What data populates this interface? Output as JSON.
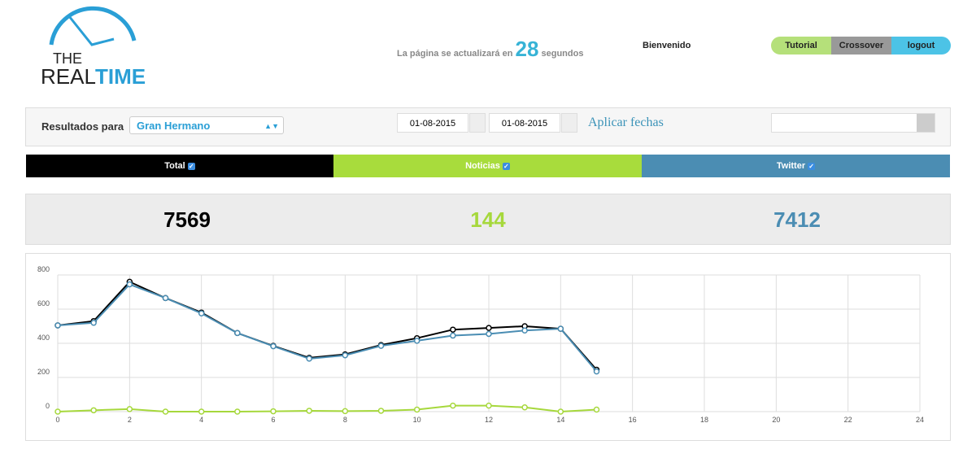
{
  "header": {
    "logo": {
      "line1": "THE",
      "line2a": "REAL",
      "line2b": "TIME"
    },
    "refresh": {
      "before": "La página se actualizará en",
      "seconds": "28",
      "after": "segundos"
    },
    "welcome": "Bienvenido",
    "buttons": [
      "Tutorial",
      "Crossover",
      "logout"
    ]
  },
  "filters": {
    "label": "Resultados para",
    "topic": "Gran Hermano",
    "date_from": "01-08-2015",
    "date_to": "01-08-2015",
    "apply": "Aplicar fechas"
  },
  "tabs": [
    "Total",
    "Noticias",
    "Twitter"
  ],
  "totals": [
    7569,
    144,
    7412
  ],
  "chart": {
    "type": "line",
    "x": [
      0,
      1,
      2,
      3,
      4,
      5,
      6,
      7,
      8,
      9,
      10,
      11,
      12,
      13,
      14,
      15
    ],
    "series": [
      {
        "name": "Total",
        "color": "#000000",
        "values": [
          505,
          530,
          760,
          665,
          580,
          460,
          385,
          315,
          335,
          390,
          430,
          480,
          490,
          500,
          485,
          245
        ]
      },
      {
        "name": "Twitter",
        "color": "#4a8db3",
        "values": [
          505,
          520,
          745,
          665,
          575,
          460,
          383,
          310,
          330,
          385,
          415,
          445,
          455,
          475,
          485,
          235
        ]
      },
      {
        "name": "Noticias",
        "color": "#a6d83c",
        "values": [
          0,
          8,
          15,
          0,
          0,
          0,
          2,
          5,
          3,
          5,
          12,
          35,
          35,
          25,
          0,
          12
        ]
      }
    ],
    "xlim": [
      0,
      24
    ],
    "xticks": [
      0,
      2,
      4,
      6,
      8,
      10,
      12,
      14,
      16,
      18,
      20,
      22,
      24
    ],
    "ylim": [
      0,
      800
    ],
    "yticks": [
      0,
      200,
      400,
      600,
      800
    ],
    "grid": true
  }
}
